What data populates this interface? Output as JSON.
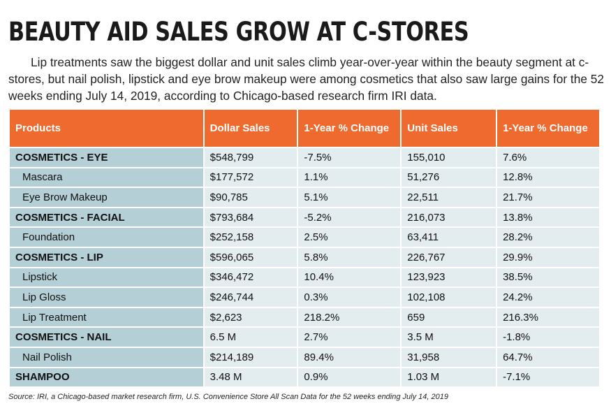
{
  "title": "BEAUTY AID SALES GROW AT C-STORES",
  "intro": "Lip treatments saw the biggest dollar and unit sales climb year-over-year within the beauty segment at c-stores, but nail polish, lipstick and eye brow makeup were among cosmetics that also saw large gains for the 52 weeks ending July 14, 2019, according to Chicago-based research firm IRI data.",
  "table": {
    "headers": [
      "Products",
      "Dollar Sales",
      "1-Year % Change",
      "Unit Sales",
      "1-Year % Change"
    ],
    "rows": [
      {
        "type": "cat",
        "cells": [
          "COSMETICS - EYE",
          "$548,799",
          "-7.5%",
          "155,010",
          "7.6%"
        ]
      },
      {
        "type": "sub",
        "cells": [
          "Mascara",
          "$177,572",
          "1.1%",
          "51,276",
          "12.8%"
        ]
      },
      {
        "type": "sub",
        "cells": [
          "Eye Brow Makeup",
          "$90,785",
          "5.1%",
          "22,511",
          "21.7%"
        ]
      },
      {
        "type": "cat",
        "cells": [
          "COSMETICS - FACIAL",
          "$793,684",
          "-5.2%",
          "216,073",
          "13.8%"
        ]
      },
      {
        "type": "sub",
        "cells": [
          "Foundation",
          "$252,158",
          "2.5%",
          "63,411",
          "28.2%"
        ]
      },
      {
        "type": "cat",
        "cells": [
          "COSMETICS - LIP",
          "$596,065",
          "5.8%",
          "226,767",
          "29.9%"
        ]
      },
      {
        "type": "sub",
        "cells": [
          "Lipstick",
          "$346,472",
          "10.4%",
          "123,923",
          "38.5%"
        ]
      },
      {
        "type": "sub",
        "cells": [
          "Lip Gloss",
          "$246,744",
          "0.3%",
          "102,108",
          "24.2%"
        ]
      },
      {
        "type": "sub",
        "cells": [
          "Lip Treatment",
          "$2,623",
          "218.2%",
          "659",
          "216.3%"
        ]
      },
      {
        "type": "cat",
        "cells": [
          "COSMETICS - NAIL",
          "6.5 M",
          "2.7%",
          "3.5 M",
          "-1.8%"
        ]
      },
      {
        "type": "sub",
        "cells": [
          "Nail Polish",
          "$214,189",
          "89.4%",
          "31,958",
          "64.7%"
        ]
      },
      {
        "type": "cat",
        "cells": [
          "SHAMPOO",
          "3.48 M",
          "0.9%",
          "1.03 M",
          "-7.1%"
        ]
      }
    ]
  },
  "source": "Source: IRI, a Chicago-based market research firm, U.S. Convenience Store All Scan Data for the 52 weeks ending July 14, 2019",
  "colors": {
    "header": "#ef6a2f",
    "product_cell": "#b4cfd6",
    "data_cell": "#e3ecef"
  }
}
